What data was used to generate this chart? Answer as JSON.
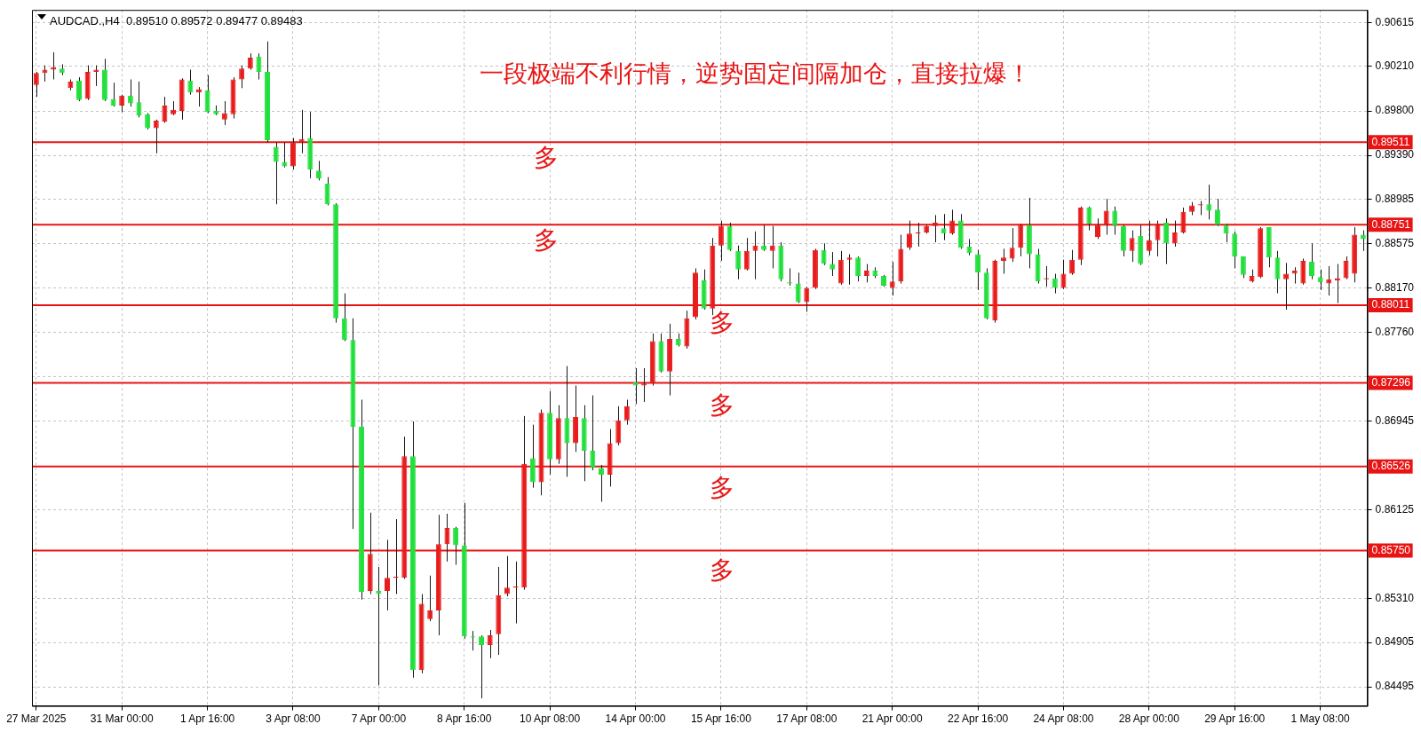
{
  "chart_data": {
    "type": "candlestick",
    "title": "AUDCAD.,H4  0.89510 0.89572 0.89477 0.89483",
    "subtitle": "一段极端不利行情，逆势固定间隔加仓，直接拉爆！",
    "categories": [
      "27 Mar 2025",
      null,
      null,
      null,
      null,
      null,
      null,
      null,
      null,
      null,
      "31 Mar 00:00",
      null,
      null,
      null,
      null,
      null,
      null,
      null,
      null,
      null,
      "1 Apr 16:00",
      null,
      null,
      null,
      null,
      null,
      null,
      null,
      null,
      null,
      "3 Apr 08:00",
      null,
      null,
      null,
      null,
      null,
      null,
      null,
      null,
      null,
      "7 Apr 00:00",
      null,
      null,
      null,
      null,
      null,
      null,
      null,
      null,
      null,
      "8 Apr 16:00",
      null,
      null,
      null,
      null,
      null,
      null,
      null,
      null,
      null,
      "10 Apr 08:00",
      null,
      null,
      null,
      null,
      null,
      null,
      null,
      null,
      null,
      "14 Apr 00:00",
      null,
      null,
      null,
      null,
      null,
      null,
      null,
      null,
      null,
      "15 Apr 16:00",
      null,
      null,
      null,
      null,
      null,
      null,
      null,
      null,
      null,
      "17 Apr 08:00",
      null,
      null,
      null,
      null,
      null,
      null,
      null,
      null,
      null,
      "21 Apr 00:00",
      null,
      null,
      null,
      null,
      null,
      null,
      null,
      null,
      null,
      "22 Apr 16:00",
      null,
      null,
      null,
      null,
      null,
      null,
      null,
      null,
      null,
      "24 Apr 08:00",
      null,
      null,
      null,
      null,
      null,
      null,
      null,
      null,
      null,
      "28 Apr 00:00",
      null,
      null,
      null,
      null,
      null,
      null,
      null,
      null,
      null,
      "29 Apr 16:00",
      null,
      null,
      null,
      null,
      null,
      null,
      null,
      null,
      null,
      "1 May 08:00",
      null,
      null,
      null,
      null,
      null
    ],
    "ohlc": [
      [
        0.9004,
        0.9016,
        0.8993,
        0.9015
      ],
      [
        0.9015,
        0.9022,
        0.9007,
        0.9018
      ],
      [
        0.9018,
        0.9034,
        0.9009,
        0.902
      ],
      [
        0.9019,
        0.9023,
        0.9013,
        0.9015
      ],
      [
        0.9001,
        0.9009,
        0.8999,
        0.9007
      ],
      [
        0.9008,
        0.9011,
        0.8989,
        0.899
      ],
      [
        0.8991,
        0.9022,
        0.899,
        0.9016
      ],
      [
        0.9016,
        0.9022,
        0.9003,
        0.9018
      ],
      [
        0.9018,
        0.9028,
        0.8989,
        0.899
      ],
      [
        0.8991,
        0.9006,
        0.8984,
        0.8985
      ],
      [
        0.8985,
        0.8995,
        0.8979,
        0.8994
      ],
      [
        0.8994,
        0.9009,
        0.8984,
        0.8987
      ],
      [
        0.8988,
        0.9007,
        0.8974,
        0.8976
      ],
      [
        0.8977,
        0.8978,
        0.8963,
        0.8964
      ],
      [
        0.8964,
        0.8972,
        0.8941,
        0.8971
      ],
      [
        0.897,
        0.8993,
        0.8969,
        0.8985
      ],
      [
        0.8977,
        0.8989,
        0.8976,
        0.8981
      ],
      [
        0.898,
        0.901,
        0.8972,
        0.9009
      ],
      [
        0.9008,
        0.9018,
        0.8995,
        0.8997
      ],
      [
        0.8997,
        0.9002,
        0.8984,
        0.9
      ],
      [
        0.8999,
        0.9013,
        0.8978,
        0.8979
      ],
      [
        0.898,
        0.8985,
        0.8976,
        0.8977
      ],
      [
        0.8972,
        0.8989,
        0.8967,
        0.8978
      ],
      [
        0.8977,
        0.9011,
        0.8973,
        0.9009
      ],
      [
        0.9009,
        0.9022,
        0.9001,
        0.9019
      ],
      [
        0.9019,
        0.9033,
        0.9018,
        0.9029
      ],
      [
        0.903,
        0.9033,
        0.9009,
        0.9016
      ],
      [
        0.9016,
        0.9044,
        0.8951,
        0.8953
      ],
      [
        0.8947,
        0.8951,
        0.8894,
        0.8933
      ],
      [
        0.8933,
        0.8951,
        0.8928,
        0.8929
      ],
      [
        0.8929,
        0.8955,
        0.8926,
        0.8951
      ],
      [
        0.8951,
        0.8981,
        0.8941,
        0.8954
      ],
      [
        0.8955,
        0.8979,
        0.8918,
        0.8926
      ],
      [
        0.8925,
        0.8934,
        0.8916,
        0.8918
      ],
      [
        0.8913,
        0.8919,
        0.8893,
        0.8894
      ],
      [
        0.8894,
        0.8895,
        0.8785,
        0.8789
      ],
      [
        0.8789,
        0.8812,
        0.8768,
        0.8769
      ],
      [
        0.8769,
        0.8789,
        0.8595,
        0.8689
      ],
      [
        0.8689,
        0.8714,
        0.853,
        0.8537
      ],
      [
        0.8538,
        0.861,
        0.8535,
        0.8572
      ],
      [
        0.8538,
        0.856,
        0.8451,
        0.8535
      ],
      [
        0.8538,
        0.8585,
        0.852,
        0.855
      ],
      [
        0.855,
        0.8604,
        0.8535,
        0.8551
      ],
      [
        0.855,
        0.868,
        0.8549,
        0.8662
      ],
      [
        0.8662,
        0.8694,
        0.8458,
        0.8465
      ],
      [
        0.8465,
        0.8535,
        0.8462,
        0.8526
      ],
      [
        0.8512,
        0.8552,
        0.851,
        0.852
      ],
      [
        0.852,
        0.8608,
        0.8497,
        0.8581
      ],
      [
        0.8581,
        0.8609,
        0.8565,
        0.8596
      ],
      [
        0.8596,
        0.8597,
        0.8562,
        0.858
      ],
      [
        0.858,
        0.8619,
        0.8494,
        0.8496
      ],
      [
        0.8496,
        0.8501,
        0.8483,
        0.8495
      ],
      [
        0.8496,
        0.8497,
        0.8439,
        0.8488
      ],
      [
        0.8488,
        0.8502,
        0.8476,
        0.8497
      ],
      [
        0.8498,
        0.856,
        0.8479,
        0.8534
      ],
      [
        0.8535,
        0.857,
        0.8533,
        0.8541
      ],
      [
        0.8541,
        0.8565,
        0.8508,
        0.8542
      ],
      [
        0.8541,
        0.8699,
        0.8539,
        0.8655
      ],
      [
        0.866,
        0.8691,
        0.8633,
        0.8638
      ],
      [
        0.8638,
        0.8705,
        0.8626,
        0.8702
      ],
      [
        0.8702,
        0.8722,
        0.8645,
        0.8659
      ],
      [
        0.8659,
        0.8709,
        0.8655,
        0.8697
      ],
      [
        0.8697,
        0.8745,
        0.8643,
        0.8674
      ],
      [
        0.8674,
        0.8727,
        0.8666,
        0.8698
      ],
      [
        0.8697,
        0.8709,
        0.8639,
        0.8667
      ],
      [
        0.8667,
        0.8718,
        0.8649,
        0.8651
      ],
      [
        0.8651,
        0.8654,
        0.862,
        0.8645
      ],
      [
        0.8645,
        0.8687,
        0.8634,
        0.8674
      ],
      [
        0.8674,
        0.8708,
        0.8672,
        0.8695
      ],
      [
        0.8695,
        0.8714,
        0.8691,
        0.8708
      ],
      [
        0.873,
        0.8743,
        0.871,
        0.8727
      ],
      [
        0.8727,
        0.8743,
        0.8712,
        0.8729
      ],
      [
        0.8729,
        0.8775,
        0.8727,
        0.8768
      ],
      [
        0.8768,
        0.8775,
        0.8739,
        0.874
      ],
      [
        0.874,
        0.8784,
        0.8718,
        0.877
      ],
      [
        0.877,
        0.8775,
        0.8763,
        0.8764
      ],
      [
        0.8763,
        0.8796,
        0.8761,
        0.8789
      ],
      [
        0.879,
        0.8835,
        0.8788,
        0.8831
      ],
      [
        0.8824,
        0.8834,
        0.8797,
        0.8798
      ],
      [
        0.8798,
        0.8863,
        0.8792,
        0.8856
      ],
      [
        0.8856,
        0.8879,
        0.8842,
        0.8874
      ],
      [
        0.8874,
        0.8877,
        0.8851,
        0.8852
      ],
      [
        0.8851,
        0.8856,
        0.8825,
        0.8834
      ],
      [
        0.8834,
        0.8863,
        0.8833,
        0.8851
      ],
      [
        0.8851,
        0.8869,
        0.8825,
        0.8856
      ],
      [
        0.8856,
        0.8875,
        0.8851,
        0.8852
      ],
      [
        0.8851,
        0.8874,
        0.8835,
        0.8856
      ],
      [
        0.8856,
        0.8859,
        0.8823,
        0.8825
      ],
      [
        0.8822,
        0.8835,
        0.8819,
        0.8821
      ],
      [
        0.8821,
        0.8831,
        0.8803,
        0.8804
      ],
      [
        0.8804,
        0.8818,
        0.8795,
        0.8817
      ],
      [
        0.8817,
        0.8853,
        0.8816,
        0.8852
      ],
      [
        0.8852,
        0.8858,
        0.8838,
        0.8839
      ],
      [
        0.8839,
        0.885,
        0.8828,
        0.8834
      ],
      [
        0.8821,
        0.8851,
        0.882,
        0.8843
      ],
      [
        0.8843,
        0.8848,
        0.882,
        0.8845
      ],
      [
        0.8845,
        0.8846,
        0.8823,
        0.8828
      ],
      [
        0.8828,
        0.8839,
        0.8822,
        0.8833
      ],
      [
        0.8833,
        0.8836,
        0.8826,
        0.8828
      ],
      [
        0.8828,
        0.8829,
        0.8818,
        0.8819
      ],
      [
        0.8817,
        0.8841,
        0.881,
        0.8823
      ],
      [
        0.8823,
        0.8866,
        0.8821,
        0.8853
      ],
      [
        0.8854,
        0.8879,
        0.8852,
        0.8867
      ],
      [
        0.8867,
        0.8877,
        0.8855,
        0.8868
      ],
      [
        0.8868,
        0.8875,
        0.8867,
        0.8874
      ],
      [
        0.8874,
        0.8884,
        0.8859,
        0.8877
      ],
      [
        0.8872,
        0.8885,
        0.8861,
        0.8867
      ],
      [
        0.8867,
        0.8889,
        0.8866,
        0.8879
      ],
      [
        0.8879,
        0.8885,
        0.8853,
        0.8854
      ],
      [
        0.8855,
        0.8862,
        0.8847,
        0.8849
      ],
      [
        0.8848,
        0.8852,
        0.8815,
        0.8831
      ],
      [
        0.8831,
        0.8835,
        0.8788,
        0.8789
      ],
      [
        0.8787,
        0.8843,
        0.8785,
        0.8842
      ],
      [
        0.8842,
        0.8853,
        0.883,
        0.8845
      ],
      [
        0.8844,
        0.8872,
        0.8841,
        0.8854
      ],
      [
        0.8854,
        0.8876,
        0.8846,
        0.8875
      ],
      [
        0.8875,
        0.89,
        0.8835,
        0.8848
      ],
      [
        0.8848,
        0.8853,
        0.8821,
        0.8823
      ],
      [
        0.8825,
        0.8837,
        0.8818,
        0.8826
      ],
      [
        0.8826,
        0.883,
        0.8812,
        0.8817
      ],
      [
        0.8817,
        0.8843,
        0.8816,
        0.883
      ],
      [
        0.883,
        0.8852,
        0.8829,
        0.8843
      ],
      [
        0.8843,
        0.8892,
        0.8838,
        0.8891
      ],
      [
        0.8891,
        0.8892,
        0.887,
        0.8876
      ],
      [
        0.8864,
        0.8881,
        0.8862,
        0.8875
      ],
      [
        0.8875,
        0.8899,
        0.8866,
        0.8888
      ],
      [
        0.8888,
        0.8892,
        0.8866,
        0.8874
      ],
      [
        0.8874,
        0.8875,
        0.8846,
        0.8851
      ],
      [
        0.8851,
        0.887,
        0.8841,
        0.8863
      ],
      [
        0.8865,
        0.8875,
        0.8838,
        0.8839
      ],
      [
        0.8851,
        0.8879,
        0.8847,
        0.8861
      ],
      [
        0.8861,
        0.8879,
        0.8846,
        0.8876
      ],
      [
        0.8877,
        0.8881,
        0.8839,
        0.8858
      ],
      [
        0.8858,
        0.8879,
        0.8855,
        0.8868
      ],
      [
        0.8868,
        0.8891,
        0.8867,
        0.8887
      ],
      [
        0.8887,
        0.8896,
        0.8884,
        0.8893
      ],
      [
        0.8893,
        0.8897,
        0.8884,
        0.8894
      ],
      [
        0.8894,
        0.8912,
        0.888,
        0.8888
      ],
      [
        0.8889,
        0.8899,
        0.8874,
        0.8875
      ],
      [
        0.8875,
        0.8876,
        0.8859,
        0.8867
      ],
      [
        0.8867,
        0.8869,
        0.8835,
        0.8846
      ],
      [
        0.8846,
        0.8846,
        0.8826,
        0.8829
      ],
      [
        0.8823,
        0.8834,
        0.8822,
        0.8828
      ],
      [
        0.8827,
        0.8873,
        0.8826,
        0.8872
      ],
      [
        0.8873,
        0.8873,
        0.8836,
        0.8845
      ],
      [
        0.8845,
        0.8851,
        0.8812,
        0.8825
      ],
      [
        0.8825,
        0.884,
        0.8797,
        0.883
      ],
      [
        0.883,
        0.8836,
        0.8821,
        0.8833
      ],
      [
        0.8821,
        0.8844,
        0.882,
        0.8842
      ],
      [
        0.8841,
        0.8858,
        0.8825,
        0.8828
      ],
      [
        0.8827,
        0.8834,
        0.8815,
        0.8822
      ],
      [
        0.8821,
        0.8837,
        0.881,
        0.8825
      ],
      [
        0.8824,
        0.8839,
        0.8803,
        0.8826
      ],
      [
        0.8826,
        0.8846,
        0.8825,
        0.8842
      ],
      [
        0.883,
        0.8873,
        0.8822,
        0.8866
      ],
      [
        0.8866,
        0.887,
        0.8851,
        0.8862
      ]
    ],
    "colors": [
      "#e81c1c",
      "#e81c1c",
      "#e81c1c",
      "#22e03c",
      "#e81c1c",
      "#22e03c",
      "#e81c1c",
      "#e81c1c",
      "#22e03c",
      "#22e03c",
      "#e81c1c",
      "#22e03c",
      "#22e03c",
      "#22e03c",
      "#e81c1c",
      "#e81c1c",
      "#e81c1c",
      "#e81c1c",
      "#22e03c",
      "#e81c1c",
      "#22e03c",
      "#22e03c",
      "#e81c1c",
      "#e81c1c",
      "#e81c1c",
      "#e81c1c",
      "#22e03c",
      "#22e03c",
      "#22e03c",
      "#22e03c",
      "#e81c1c",
      "#e81c1c",
      "#22e03c",
      "#22e03c",
      "#22e03c",
      "#22e03c",
      "#22e03c",
      "#22e03c",
      "#22e03c",
      "#e81c1c",
      "#22e03c",
      "#e81c1c",
      "#e81c1c",
      "#e81c1c",
      "#22e03c",
      "#e81c1c",
      "#e81c1c",
      "#e81c1c",
      "#e81c1c",
      "#22e03c",
      "#22e03c",
      "#22e03c",
      "#22e03c",
      "#e81c1c",
      "#e81c1c",
      "#e81c1c",
      "#e81c1c",
      "#e81c1c",
      "#22e03c",
      "#e81c1c",
      "#22e03c",
      "#e81c1c",
      "#22e03c",
      "#e81c1c",
      "#22e03c",
      "#22e03c",
      "#22e03c",
      "#e81c1c",
      "#e81c1c",
      "#e81c1c",
      "#22e03c",
      "#e81c1c",
      "#e81c1c",
      "#22e03c",
      "#e81c1c",
      "#22e03c",
      "#e81c1c",
      "#e81c1c",
      "#22e03c",
      "#e81c1c",
      "#e81c1c",
      "#22e03c",
      "#22e03c",
      "#e81c1c",
      "#e81c1c",
      "#22e03c",
      "#e81c1c",
      "#22e03c",
      "#22e03c",
      "#22e03c",
      "#e81c1c",
      "#e81c1c",
      "#22e03c",
      "#22e03c",
      "#e81c1c",
      "#e81c1c",
      "#22e03c",
      "#e81c1c",
      "#22e03c",
      "#22e03c",
      "#e81c1c",
      "#e81c1c",
      "#e81c1c",
      "#e81c1c",
      "#e81c1c",
      "#e81c1c",
      "#22e03c",
      "#e81c1c",
      "#22e03c",
      "#22e03c",
      "#22e03c",
      "#22e03c",
      "#e81c1c",
      "#e81c1c",
      "#e81c1c",
      "#e81c1c",
      "#22e03c",
      "#22e03c",
      "#e81c1c",
      "#22e03c",
      "#e81c1c",
      "#e81c1c",
      "#e81c1c",
      "#22e03c",
      "#e81c1c",
      "#e81c1c",
      "#22e03c",
      "#22e03c",
      "#e81c1c",
      "#22e03c",
      "#e81c1c",
      "#e81c1c",
      "#22e03c",
      "#e81c1c",
      "#e81c1c",
      "#e81c1c",
      "#e81c1c",
      "#22e03c",
      "#22e03c",
      "#22e03c",
      "#22e03c",
      "#22e03c",
      "#e81c1c",
      "#e81c1c",
      "#22e03c",
      "#22e03c",
      "#e81c1c",
      "#e81c1c",
      "#e81c1c",
      "#22e03c",
      "#22e03c",
      "#e81c1c",
      "#e81c1c",
      "#e81c1c",
      "#e81c1c",
      "#22e03c"
    ],
    "ylim": [
      0.8432,
      0.9073
    ],
    "yticks": [
      0.90615,
      {
        "value": 0.9021,
        "label": "0.90210"
      },
      {
        "value": 0.898,
        "label": "0.89800"
      },
      {
        "value": 0.8939,
        "label": "0.89390"
      },
      0.88985,
      0.88575,
      {
        "value": 0.8817,
        "label": "0.88170"
      },
      {
        "value": 0.8776,
        "label": "0.87760"
      },
      {
        "value": 0.8735,
        "label": null
      },
      0.86945,
      0.86125,
      {
        "value": 0.8531,
        "label": "0.85310"
      },
      0.84905,
      0.84495
    ],
    "ref_lines": [
      {
        "axis": "y",
        "value": 0.89511,
        "label": "0.89511",
        "color": "#e81414"
      },
      {
        "axis": "y",
        "value": 0.88751,
        "label": "0.88751",
        "color": "#e81414"
      },
      {
        "axis": "y",
        "value": 0.88011,
        "label": "0.88011",
        "color": "#e81414"
      },
      {
        "axis": "y",
        "value": 0.87296,
        "label": "0.87296",
        "color": "#e81414"
      },
      {
        "axis": "y",
        "value": 0.86526,
        "label": "0.86526",
        "color": "#e81414"
      },
      {
        "axis": "y",
        "value": 0.8575,
        "label": "0.85750",
        "color": "#e81414"
      }
    ],
    "annotations": [
      "多",
      "多",
      "多",
      "多",
      "多",
      "多"
    ],
    "grid": true,
    "legend": false
  }
}
